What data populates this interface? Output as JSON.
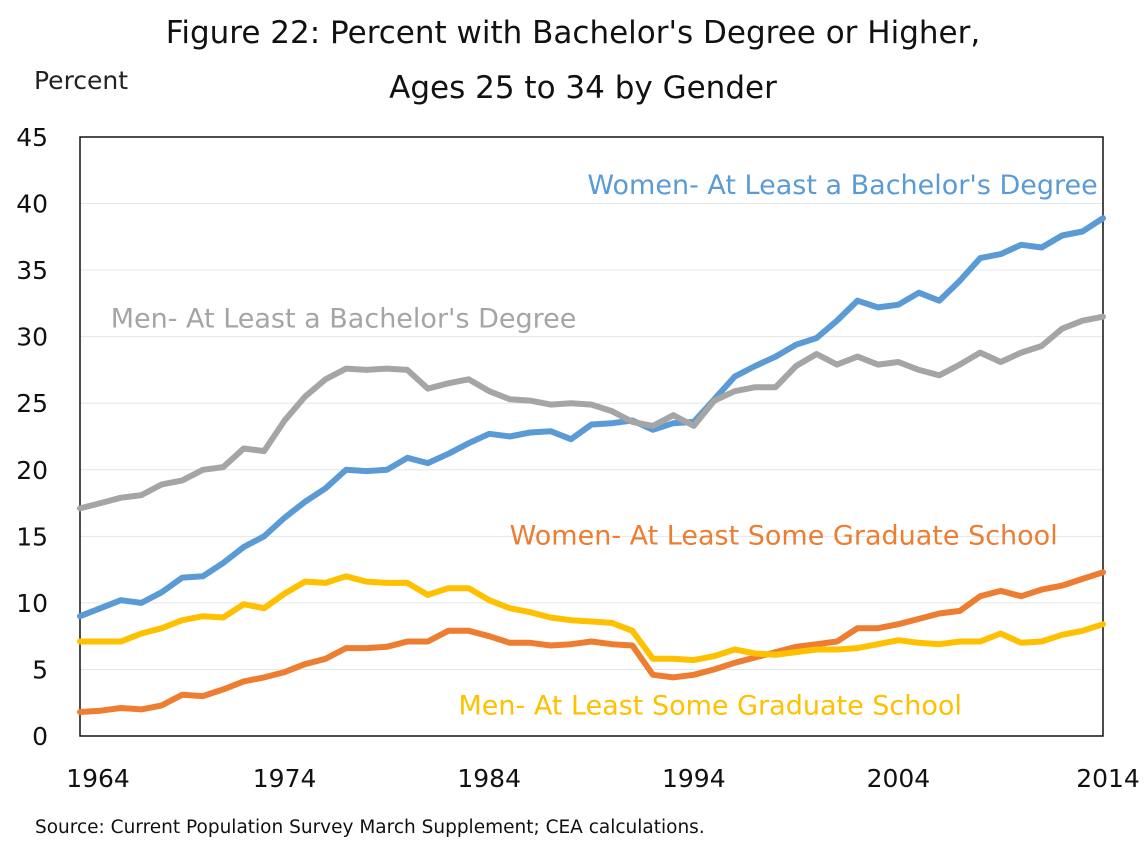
{
  "title_line1": "Figure 22: Percent with Bachelor's Degree or Higher,",
  "title_line2": "Ages 25 to 34 by Gender",
  "y_unit": "Percent",
  "source": "Source: Current Population Survey March Supplement; CEA calculations.",
  "chart_data": {
    "type": "line",
    "title": "Figure 22: Percent with Bachelor's Degree or Higher, Ages 25 to 34 by Gender",
    "ylabel": "Percent",
    "xlim": [
      1964,
      2014
    ],
    "ylim": [
      0,
      45
    ],
    "x_ticks": [
      1964,
      1974,
      1984,
      1994,
      2004,
      2014
    ],
    "y_ticks": [
      0,
      5,
      10,
      15,
      20,
      25,
      30,
      35,
      40,
      45
    ],
    "grid": true,
    "legend": "direct labels",
    "x": [
      1964,
      1965,
      1966,
      1967,
      1968,
      1969,
      1970,
      1971,
      1972,
      1973,
      1974,
      1975,
      1976,
      1977,
      1978,
      1979,
      1980,
      1981,
      1982,
      1983,
      1984,
      1985,
      1986,
      1987,
      1988,
      1989,
      1990,
      1991,
      1992,
      1993,
      1994,
      1995,
      1996,
      1997,
      1998,
      1999,
      2000,
      2001,
      2002,
      2003,
      2004,
      2005,
      2006,
      2007,
      2008,
      2009,
      2010,
      2011,
      2012,
      2013,
      2014
    ],
    "series": [
      {
        "name": "Women- At Least a Bachelor's Degree",
        "color": "#5b9bd5",
        "values": [
          9.0,
          9.6,
          10.2,
          10.0,
          10.8,
          11.9,
          12.0,
          13.0,
          14.2,
          15.0,
          16.4,
          17.6,
          18.6,
          20.0,
          19.9,
          20.0,
          20.9,
          20.5,
          21.2,
          22.0,
          22.7,
          22.5,
          22.8,
          22.9,
          22.3,
          23.4,
          23.5,
          23.7,
          23.0,
          23.5,
          23.6,
          25.3,
          27.0,
          27.8,
          28.5,
          29.4,
          29.9,
          31.2,
          32.7,
          32.2,
          32.4,
          33.3,
          32.7,
          34.2,
          35.9,
          36.2,
          36.9,
          36.7,
          37.6,
          37.9,
          38.9
        ]
      },
      {
        "name": "Men- At Least a Bachelor's Degree",
        "color": "#a5a5a5",
        "values": [
          17.1,
          17.5,
          17.9,
          18.1,
          18.9,
          19.2,
          20.0,
          20.2,
          21.6,
          21.4,
          23.7,
          25.5,
          26.8,
          27.6,
          27.5,
          27.6,
          27.5,
          26.1,
          26.5,
          26.8,
          25.9,
          25.3,
          25.2,
          24.9,
          25.0,
          24.9,
          24.4,
          23.6,
          23.3,
          24.1,
          23.3,
          25.2,
          25.9,
          26.2,
          26.2,
          27.8,
          28.7,
          27.9,
          28.5,
          27.9,
          28.1,
          27.5,
          27.1,
          27.9,
          28.8,
          28.1,
          28.8,
          29.3,
          30.6,
          31.2,
          31.5
        ]
      },
      {
        "name": "Women- At Least Some Graduate School",
        "color": "#ed7d31",
        "values": [
          1.8,
          1.9,
          2.1,
          2.0,
          2.3,
          3.1,
          3.0,
          3.5,
          4.1,
          4.4,
          4.8,
          5.4,
          5.8,
          6.6,
          6.6,
          6.7,
          7.1,
          7.1,
          7.9,
          7.9,
          7.5,
          7.0,
          7.0,
          6.8,
          6.9,
          7.1,
          6.9,
          6.8,
          4.6,
          4.4,
          4.6,
          5.0,
          5.5,
          5.9,
          6.3,
          6.7,
          6.9,
          7.1,
          8.1,
          8.1,
          8.4,
          8.8,
          9.2,
          9.4,
          10.5,
          10.9,
          10.5,
          11.0,
          11.3,
          11.8,
          12.3
        ]
      },
      {
        "name": "Men- At Least Some Graduate School",
        "color": "#ffc000",
        "values": [
          7.1,
          7.1,
          7.1,
          7.7,
          8.1,
          8.7,
          9.0,
          8.9,
          9.9,
          9.6,
          10.7,
          11.6,
          11.5,
          12.0,
          11.6,
          11.5,
          11.5,
          10.6,
          11.1,
          11.1,
          10.2,
          9.6,
          9.3,
          8.9,
          8.7,
          8.6,
          8.5,
          7.9,
          5.8,
          5.8,
          5.7,
          6.0,
          6.5,
          6.2,
          6.1,
          6.3,
          6.5,
          6.5,
          6.6,
          6.9,
          7.2,
          7.0,
          6.9,
          7.1,
          7.1,
          7.7,
          7.0,
          7.1,
          7.6,
          7.9,
          8.4
        ]
      }
    ]
  }
}
